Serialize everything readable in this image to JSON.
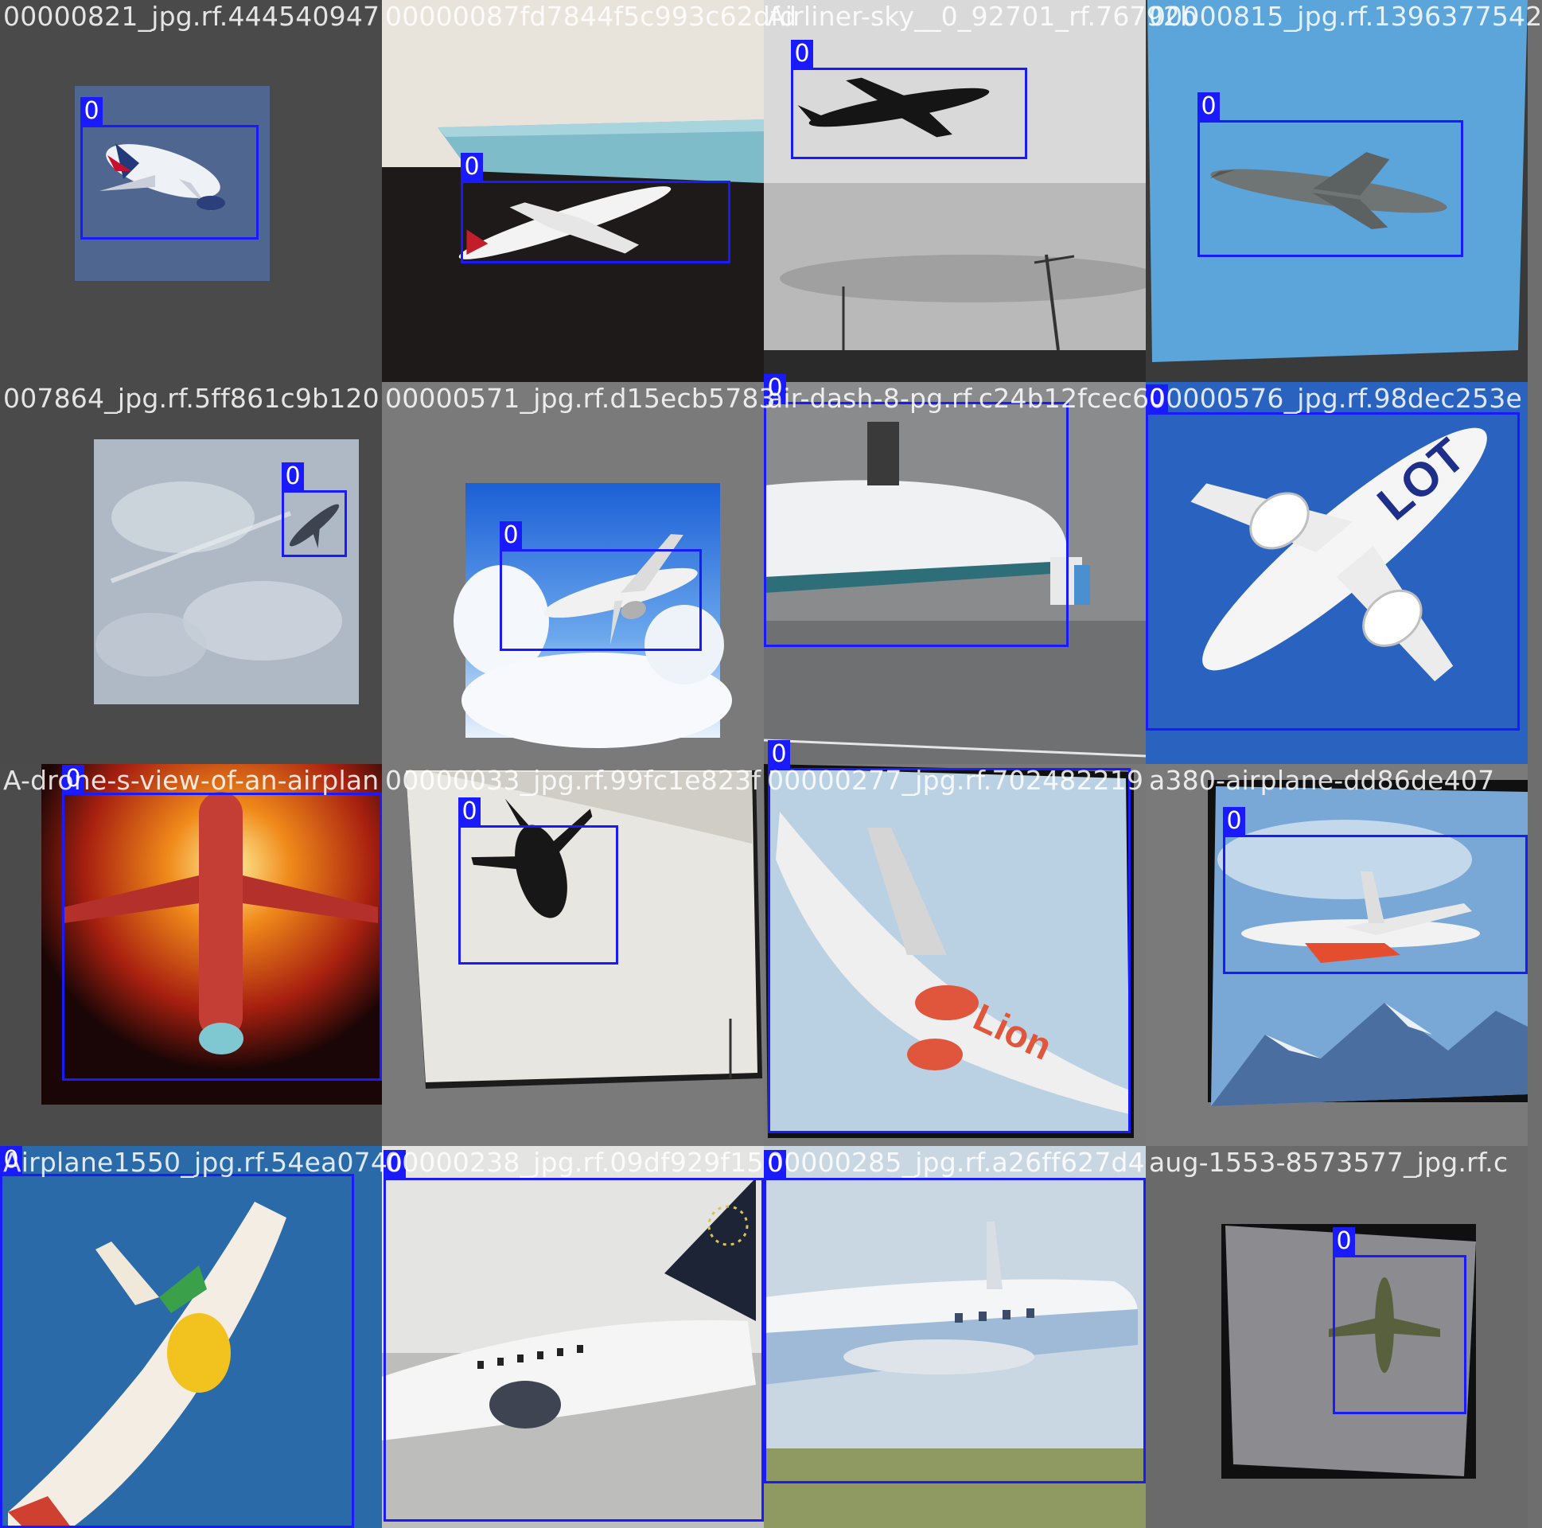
{
  "colors": {
    "box": "#1a1aff",
    "label_bg": "#1a1aff",
    "label_text": "#ffffff",
    "filename_text": "#ffffff",
    "canvas_bg": "#707070"
  },
  "tiles": [
    {
      "filename": "00000821_jpg.rf.444540947",
      "box_label": "0",
      "subject": "airliner-british-airways"
    },
    {
      "filename": "00000087fd7844f5c993c62dfd",
      "box_label": "0",
      "subject": "model-airliner-on-desk"
    },
    {
      "filename": "Airliner-sky__0_92701_rf.76792b",
      "box_label": "0",
      "subject": "airliner-silhouette-grey-sky"
    },
    {
      "filename": "00000815_jpg.rf.1396377542",
      "box_label": "0",
      "subject": "fighter-jet-blue-sky"
    },
    {
      "filename": "007864_jpg.rf.5ff861c9b120",
      "box_label": "0",
      "subject": "jet-in-cloudy-sky"
    },
    {
      "filename": "00000571_jpg.rf.d15ecb5783",
      "box_label": "0",
      "subject": "jet-above-clouds"
    },
    {
      "filename": "air-dash-8-pg.rf.c24b12fcec6",
      "box_label": "0",
      "subject": "turboprop-on-tarmac"
    },
    {
      "filename": "00000576_jpg.rf.98dec253e",
      "box_label": "0",
      "subject": "lot-airliner-underside"
    },
    {
      "filename": "A-drone-s-view-of-an-airplan",
      "box_label": "0",
      "subject": "airliner-sunset-render"
    },
    {
      "filename": "00000033_jpg.rf.99fc1e823f",
      "box_label": "0",
      "subject": "airliner-silhouette-bright-sky"
    },
    {
      "filename": "00000277_jpg.rf.702482219",
      "box_label": "0",
      "subject": "lion-air-jet-closeup"
    },
    {
      "filename": "a380-airplane-dd86de407",
      "box_label": "0",
      "subject": "a380-over-mountains"
    },
    {
      "filename": "Airplane1550_jpg.rf.54ea074",
      "box_label": "0",
      "subject": "turboprop-blue-sky"
    },
    {
      "filename": "00000238_jpg.rf.09df929f15",
      "box_label": "0",
      "subject": "republic-airways-jet"
    },
    {
      "filename": "00000285_jpg.rf.a26ff627d4",
      "box_label": "0",
      "subject": "propliner-on-runway"
    },
    {
      "filename": "aug-1553-8573577_jpg.rf.c",
      "box_label": "0",
      "subject": "warbird-grey-sky"
    }
  ]
}
